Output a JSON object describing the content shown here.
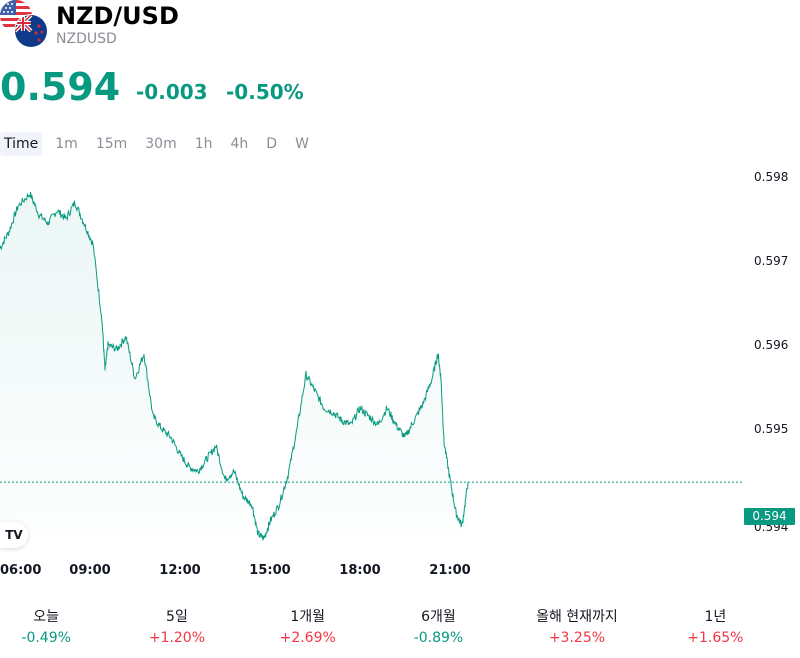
{
  "header": {
    "title": "NZD/USD",
    "subtitle": "NZDUSD",
    "flag_icons": [
      "us-flag-icon",
      "nz-flag-icon"
    ]
  },
  "quote": {
    "price": "0.594",
    "change_abs": "-0.003",
    "change_pct": "-0.50%"
  },
  "tabs": [
    {
      "label": "Time",
      "active": true
    },
    {
      "label": "1m",
      "active": false
    },
    {
      "label": "15m",
      "active": false
    },
    {
      "label": "30m",
      "active": false
    },
    {
      "label": "1h",
      "active": false
    },
    {
      "label": "4h",
      "active": false
    },
    {
      "label": "D",
      "active": false
    },
    {
      "label": "W",
      "active": false
    }
  ],
  "chart_data": {
    "type": "area",
    "y_ticks": [
      "0.598",
      "0.597",
      "0.596",
      "0.595",
      "0.594"
    ],
    "x_ticks": [
      "06:00",
      "09:00",
      "12:00",
      "15:00",
      "18:00",
      "21:00"
    ],
    "ylim": [
      0.5938,
      0.5982
    ],
    "xlim": [
      6.0,
      25.0
    ],
    "last_price_label": "0.594",
    "last_price": 0.59437,
    "x": [
      6.0,
      6.3,
      6.6,
      7.0,
      7.3,
      7.6,
      7.9,
      8.2,
      8.5,
      8.8,
      9.1,
      9.4,
      9.5,
      9.6,
      9.9,
      10.2,
      10.5,
      10.8,
      11.1,
      11.4,
      11.7,
      12.0,
      12.3,
      12.6,
      12.9,
      13.2,
      13.5,
      13.8,
      14.1,
      14.4,
      14.6,
      14.8,
      15.0,
      15.3,
      15.6,
      15.9,
      16.2,
      16.5,
      16.8,
      17.1,
      17.4,
      17.7,
      18.0,
      18.3,
      18.6,
      18.9,
      19.2,
      19.5,
      19.8,
      20.1,
      20.4,
      20.6,
      20.7,
      20.8,
      21.0,
      21.2,
      21.4,
      21.6
    ],
    "y": [
      0.59715,
      0.59735,
      0.59765,
      0.5978,
      0.59755,
      0.59745,
      0.5976,
      0.5975,
      0.5977,
      0.59745,
      0.5972,
      0.5963,
      0.5957,
      0.596,
      0.59595,
      0.5961,
      0.5956,
      0.5959,
      0.59515,
      0.595,
      0.5949,
      0.5947,
      0.59455,
      0.5945,
      0.59465,
      0.5948,
      0.5944,
      0.5945,
      0.5942,
      0.5941,
      0.59375,
      0.5937,
      0.5939,
      0.5941,
      0.59445,
      0.595,
      0.59565,
      0.59545,
      0.59525,
      0.5952,
      0.5951,
      0.59505,
      0.59525,
      0.59515,
      0.59505,
      0.59525,
      0.59505,
      0.5949,
      0.5951,
      0.5953,
      0.5956,
      0.5959,
      0.5956,
      0.59485,
      0.5944,
      0.594,
      0.59385,
      0.59437
    ]
  },
  "chart_logo": "TV",
  "colors": {
    "accent_green": "#089981",
    "accent_red": "#f23645"
  },
  "performance": [
    {
      "label": "오늘",
      "value": "-0.49%",
      "dir": "neg"
    },
    {
      "label": "5일",
      "value": "+1.20%",
      "dir": "pos"
    },
    {
      "label": "1개월",
      "value": "+2.69%",
      "dir": "pos"
    },
    {
      "label": "6개월",
      "value": "-0.89%",
      "dir": "neg"
    },
    {
      "label": "올해 현재까지",
      "value": "+3.25%",
      "dir": "pos"
    },
    {
      "label": "1년",
      "value": "+1.65%",
      "dir": "pos"
    }
  ]
}
